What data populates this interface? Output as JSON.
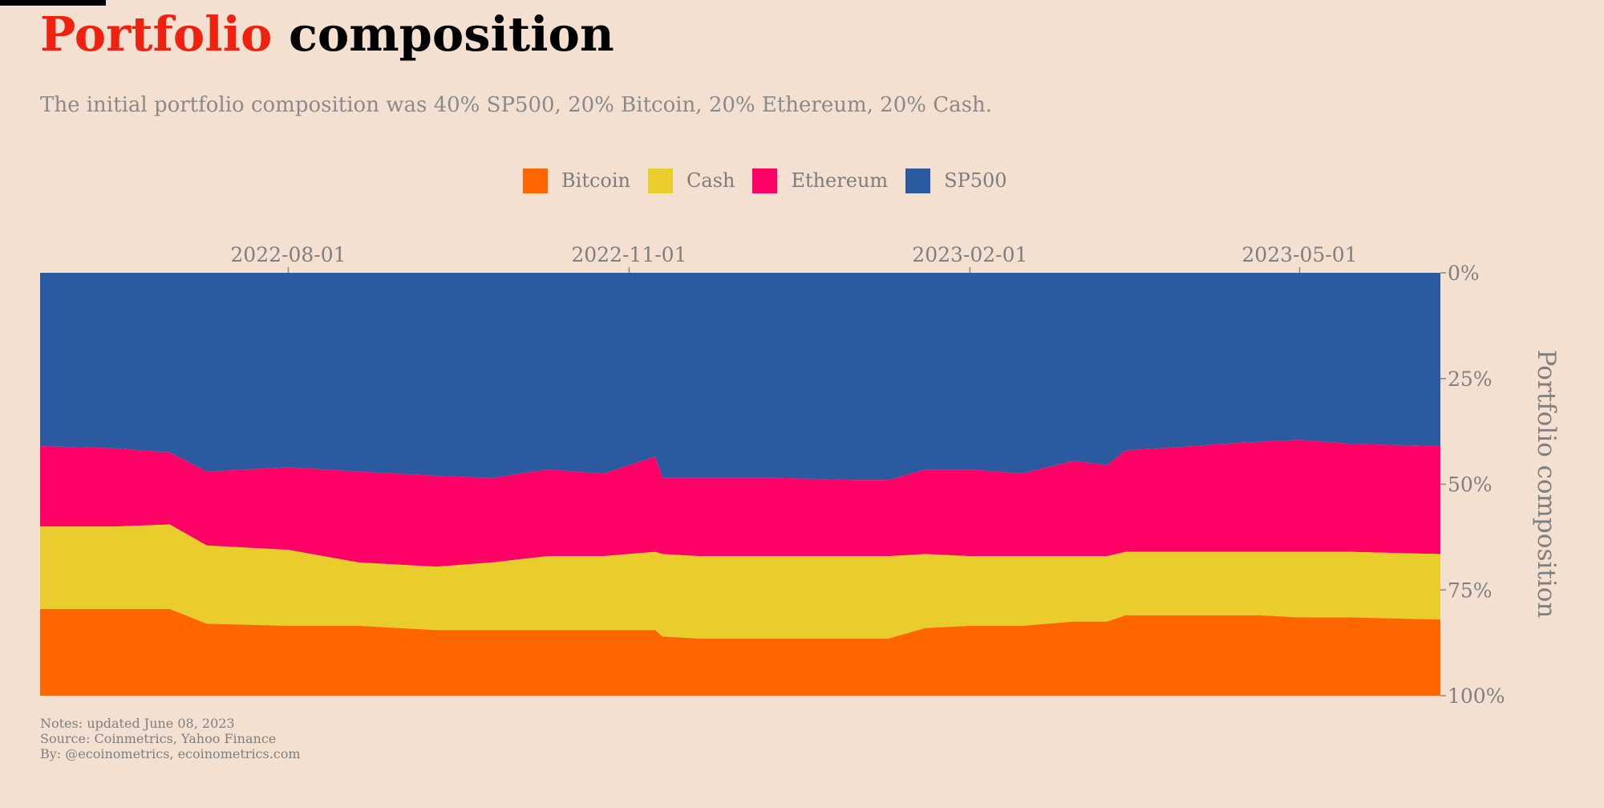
{
  "header": {
    "title_accent": "Portfolio",
    "title_rest": "composition",
    "subtitle": "The initial portfolio composition was 40% SP500, 20% Bitcoin, 20% Ethereum, 20% Cash."
  },
  "legend": [
    {
      "label": "Bitcoin",
      "color": "#ff6600"
    },
    {
      "label": "Cash",
      "color": "#e8cd2c"
    },
    {
      "label": "Ethereum",
      "color": "#ff0066"
    },
    {
      "label": "SP500",
      "color": "#2b5aa0"
    }
  ],
  "notes": {
    "line1": "Notes: updated June 08, 2023",
    "line2": "Source: Coinmetrics, Yahoo Finance",
    "line3": "By: @ecoinometrics, ecoinometrics.com"
  },
  "chart_data": {
    "type": "area",
    "stacked": true,
    "x": [
      "2022-05-26",
      "2022-06-15",
      "2022-06-30",
      "2022-07-10",
      "2022-08-01",
      "2022-08-20",
      "2022-09-10",
      "2022-09-25",
      "2022-10-10",
      "2022-10-25",
      "2022-11-08",
      "2022-11-10",
      "2022-11-20",
      "2022-12-10",
      "2022-12-31",
      "2023-01-10",
      "2023-01-20",
      "2023-02-01",
      "2023-02-15",
      "2023-03-01",
      "2023-03-10",
      "2023-03-15",
      "2023-03-25",
      "2023-04-10",
      "2023-04-20",
      "2023-05-01",
      "2023-05-15",
      "2023-06-08"
    ],
    "series": [
      {
        "name": "Bitcoin",
        "color": "#ff6600",
        "values": [
          20.5,
          20.5,
          20.5,
          17.0,
          16.5,
          16.5,
          15.5,
          15.5,
          15.5,
          15.5,
          15.5,
          14.0,
          13.5,
          13.5,
          13.5,
          13.5,
          16.0,
          16.5,
          16.5,
          17.5,
          17.5,
          19.0,
          19.0,
          19.0,
          19.0,
          18.5,
          18.5,
          18.0
        ]
      },
      {
        "name": "Cash",
        "color": "#e8cd2c",
        "values": [
          19.5,
          19.5,
          20.0,
          18.5,
          18.0,
          15.0,
          15.0,
          16.0,
          17.5,
          17.5,
          18.5,
          19.5,
          19.5,
          19.5,
          19.5,
          19.5,
          17.5,
          16.5,
          16.5,
          15.5,
          15.5,
          15.0,
          15.0,
          15.0,
          15.0,
          15.5,
          15.5,
          15.5
        ]
      },
      {
        "name": "Ethereum",
        "color": "#ff0066",
        "values": [
          19.0,
          18.5,
          17.0,
          17.5,
          19.5,
          21.5,
          21.5,
          20.0,
          20.5,
          19.5,
          22.5,
          18.0,
          18.5,
          18.5,
          18.0,
          18.0,
          20.0,
          20.5,
          19.5,
          22.5,
          21.5,
          24.0,
          24.5,
          25.5,
          26.0,
          26.5,
          25.5,
          25.5
        ]
      },
      {
        "name": "SP500",
        "color": "#2b5aa0",
        "values": [
          41.0,
          41.5,
          42.5,
          47.0,
          46.0,
          47.0,
          48.0,
          48.5,
          46.5,
          47.5,
          43.5,
          48.5,
          48.5,
          48.5,
          49.0,
          49.0,
          46.5,
          46.5,
          47.5,
          44.5,
          45.5,
          42.0,
          41.5,
          40.5,
          40.0,
          39.5,
          40.5,
          41.0
        ]
      }
    ],
    "x_ticks": [
      "2022-08-01",
      "2022-11-01",
      "2023-02-01",
      "2023-05-01"
    ],
    "x_axis_position": "top",
    "y_ticks": [
      "0%",
      "25%",
      "50%",
      "75%",
      "100%"
    ],
    "y_axis_position": "right",
    "ylim": [
      0,
      100
    ],
    "y_inverted": true,
    "ylabel": "Portfolio composition",
    "grid": false,
    "legend_position": "top-center"
  }
}
